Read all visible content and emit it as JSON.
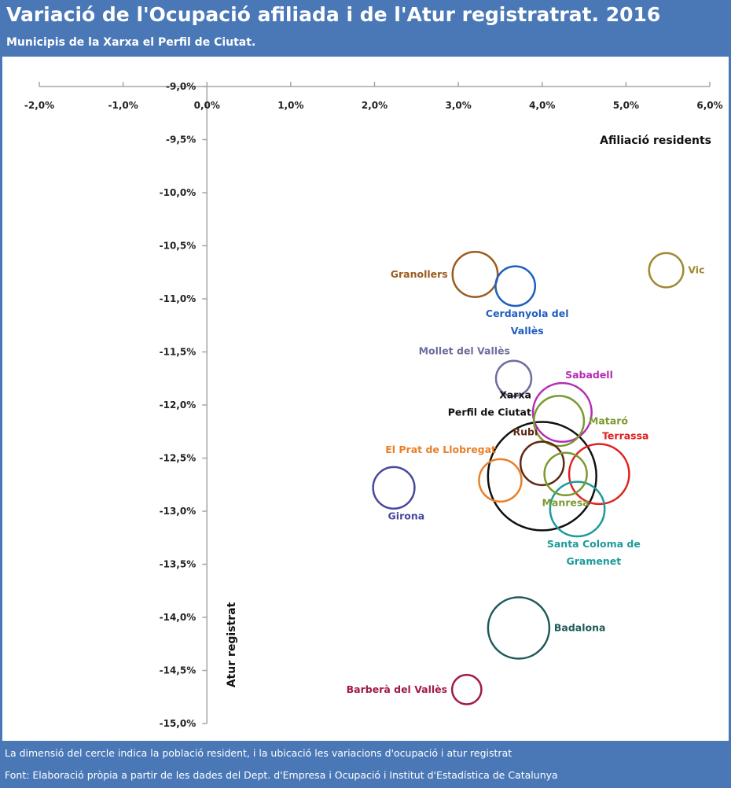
{
  "title": "Variació de l'Ocupació afiliada i de l'Atur registratrat. 2016",
  "subtitle": "Municipis de la Xarxa el Perfil de Ciutat.",
  "footer_note": "La dimensió del cercle indica la població resident, i la ubicació les variacions d'ocupació i atur registrat",
  "footer_source": "Font: Elaboració pròpia a partir de les dades del Dept. d'Empresa i Ocupació  i Institut d'Estadística de Catalunya",
  "colors": {
    "header_bg": "#4a78b7",
    "axis": "#a6a6a6"
  },
  "chart_data": {
    "type": "bubble",
    "xlabel": "Afiliació residents",
    "ylabel": "Atur registrat",
    "xlim": [
      -2.0,
      6.0
    ],
    "ylim": [
      -15.0,
      -9.0
    ],
    "x_ticks": [
      "-2,0%",
      "-1,0%",
      "0,0%",
      "1,0%",
      "2,0%",
      "3,0%",
      "4,0%",
      "5,0%",
      "6,0%"
    ],
    "y_ticks": [
      "-9,0%",
      "-9,5%",
      "-10,0%",
      "-10,5%",
      "-11,0%",
      "-11,5%",
      "-12,0%",
      "-12,5%",
      "-13,0%",
      "-13,5%",
      "-14,0%",
      "-14,5%",
      "-15,0%"
    ],
    "x_axis_position": "top",
    "grid": false,
    "points": [
      {
        "name": "Granollers",
        "label_lines": [
          "Granollers"
        ],
        "x": 3.2,
        "y": -10.77,
        "size": 2.6,
        "color": "#9c5a1e",
        "label_pos": "left"
      },
      {
        "name": "Cerdanyola del Vallès",
        "label_lines": [
          "Cerdanyola del",
          "Vallès"
        ],
        "x": 3.68,
        "y": -10.88,
        "size": 2.0,
        "color": "#1f5fbf",
        "label_pos": "below-right"
      },
      {
        "name": "Vic",
        "label_lines": [
          "Vic"
        ],
        "x": 5.48,
        "y": -10.73,
        "size": 1.5,
        "color": "#a08a32",
        "label_pos": "right"
      },
      {
        "name": "Mollet del Vallès",
        "label_lines": [
          "Mollet del Vallès"
        ],
        "x": 3.66,
        "y": -11.75,
        "size": 1.6,
        "color": "#6e6e9e",
        "label_pos": "above-left"
      },
      {
        "name": "Sabadell",
        "label_lines": [
          "Sabadell"
        ],
        "x": 4.24,
        "y": -12.07,
        "size": 4.4,
        "color": "#b52cb5",
        "label_pos": "above-right"
      },
      {
        "name": "Mataró",
        "label_lines": [
          "Mataró"
        ],
        "x": 4.2,
        "y": -12.15,
        "size": 3.2,
        "color": "#7a9a2e",
        "label_pos": "right"
      },
      {
        "name": "Xarxa Perfil de Ciutat",
        "label_lines": [
          "Xarxa",
          "Perfil de Ciutat"
        ],
        "x": 4.0,
        "y": -12.67,
        "size": 15.0,
        "color": "#111111",
        "label_pos": "above-left"
      },
      {
        "name": "Rubí",
        "label_lines": [
          "Rubí"
        ],
        "x": 4.0,
        "y": -12.55,
        "size": 2.4,
        "color": "#5b2a12",
        "label_pos": "above-left"
      },
      {
        "name": "Terrassa",
        "label_lines": [
          "Terrassa"
        ],
        "x": 4.68,
        "y": -12.65,
        "size": 4.6,
        "color": "#e02020",
        "label_pos": "above-right"
      },
      {
        "name": "El Prat de Llobregat",
        "label_lines": [
          "El Prat de Llobregat"
        ],
        "x": 3.5,
        "y": -12.71,
        "size": 2.3,
        "color": "#e8802a",
        "label_pos": "above-left"
      },
      {
        "name": "Manresa",
        "label_lines": [
          "Manresa"
        ],
        "x": 4.28,
        "y": -12.65,
        "size": 2.3,
        "color": "#7a9a2e",
        "label_pos": "below"
      },
      {
        "name": "Girona",
        "label_lines": [
          "Girona"
        ],
        "x": 2.23,
        "y": -12.78,
        "size": 2.2,
        "color": "#4848a0",
        "label_pos": "below-right"
      },
      {
        "name": "Santa Coloma de Gramenet",
        "label_lines": [
          "Santa Coloma de",
          "Gramenet"
        ],
        "x": 4.42,
        "y": -12.98,
        "size": 3.8,
        "color": "#1e9a9a",
        "label_pos": "below-right"
      },
      {
        "name": "Badalona",
        "label_lines": [
          "Badalona"
        ],
        "x": 3.72,
        "y": -14.1,
        "size": 4.8,
        "color": "#1f5a5a",
        "label_pos": "right"
      },
      {
        "name": "Barberà del Vallès",
        "label_lines": [
          "Barberà del Vallès"
        ],
        "x": 3.1,
        "y": -14.68,
        "size": 1.1,
        "color": "#a01a4a",
        "label_pos": "left"
      }
    ]
  }
}
